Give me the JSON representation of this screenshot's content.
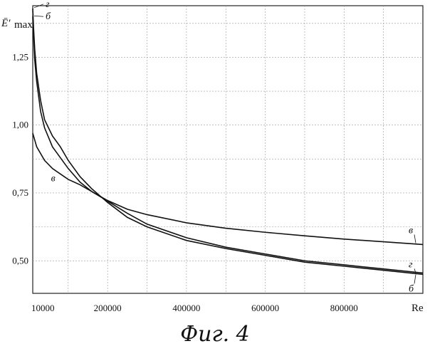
{
  "caption": "Фиг. 4",
  "chart_data": {
    "type": "line",
    "title": "",
    "xlabel": "Re",
    "ylabel": "Ē′max",
    "ylabel_main": "Ē′",
    "ylabel_sub": "max",
    "xlim": [
      10000,
      1000000
    ],
    "ylim": [
      0.38,
      1.44
    ],
    "grid": true,
    "x_ticks": [
      10000,
      200000,
      400000,
      600000,
      800000
    ],
    "y_ticks": [
      0.5,
      0.75,
      1.0,
      1.25
    ],
    "x_tick_labels": [
      "10000",
      "200000",
      "400000",
      "600000",
      "800000"
    ],
    "y_tick_labels": [
      "0,50",
      "0,75",
      "1,00",
      "1,25"
    ],
    "series": [
      {
        "name": "в",
        "x": [
          10000,
          20000,
          40000,
          60000,
          80000,
          100000,
          130000,
          160000,
          200000,
          250000,
          300000,
          400000,
          500000,
          600000,
          700000,
          800000,
          900000,
          1000000
        ],
        "y": [
          0.97,
          0.92,
          0.87,
          0.84,
          0.82,
          0.8,
          0.78,
          0.755,
          0.722,
          0.69,
          0.67,
          0.64,
          0.62,
          0.605,
          0.592,
          0.58,
          0.57,
          0.56
        ]
      },
      {
        "name": "б",
        "x": [
          10000,
          12000,
          15000,
          20000,
          30000,
          40000,
          60000,
          80000,
          100000,
          130000,
          160000,
          200000,
          250000,
          300000,
          400000,
          500000,
          600000,
          700000,
          800000,
          900000,
          1000000
        ],
        "y": [
          1.4,
          1.33,
          1.24,
          1.16,
          1.05,
          0.99,
          0.92,
          0.88,
          0.84,
          0.79,
          0.755,
          0.72,
          0.675,
          0.635,
          0.585,
          0.55,
          0.525,
          0.5,
          0.485,
          0.47,
          0.455
        ]
      },
      {
        "name": "г",
        "x": [
          10000,
          12000,
          15000,
          20000,
          30000,
          40000,
          60000,
          80000,
          100000,
          130000,
          160000,
          200000,
          250000,
          300000,
          400000,
          500000,
          600000,
          700000,
          800000,
          900000,
          1000000
        ],
        "y": [
          1.43,
          1.36,
          1.28,
          1.19,
          1.09,
          1.02,
          0.96,
          0.92,
          0.87,
          0.81,
          0.765,
          0.715,
          0.66,
          0.625,
          0.575,
          0.545,
          0.52,
          0.495,
          0.48,
          0.465,
          0.45
        ]
      }
    ],
    "curve_labels": [
      {
        "text": "г",
        "series": "г",
        "end": "top"
      },
      {
        "text": "б",
        "series": "б",
        "end": "top"
      },
      {
        "text": "в",
        "series": "в",
        "end": "top"
      },
      {
        "text": "в",
        "series": "в",
        "end": "bottom"
      },
      {
        "text": "г",
        "series": "г",
        "end": "bottom"
      },
      {
        "text": "б",
        "series": "б",
        "end": "bottom"
      }
    ]
  }
}
